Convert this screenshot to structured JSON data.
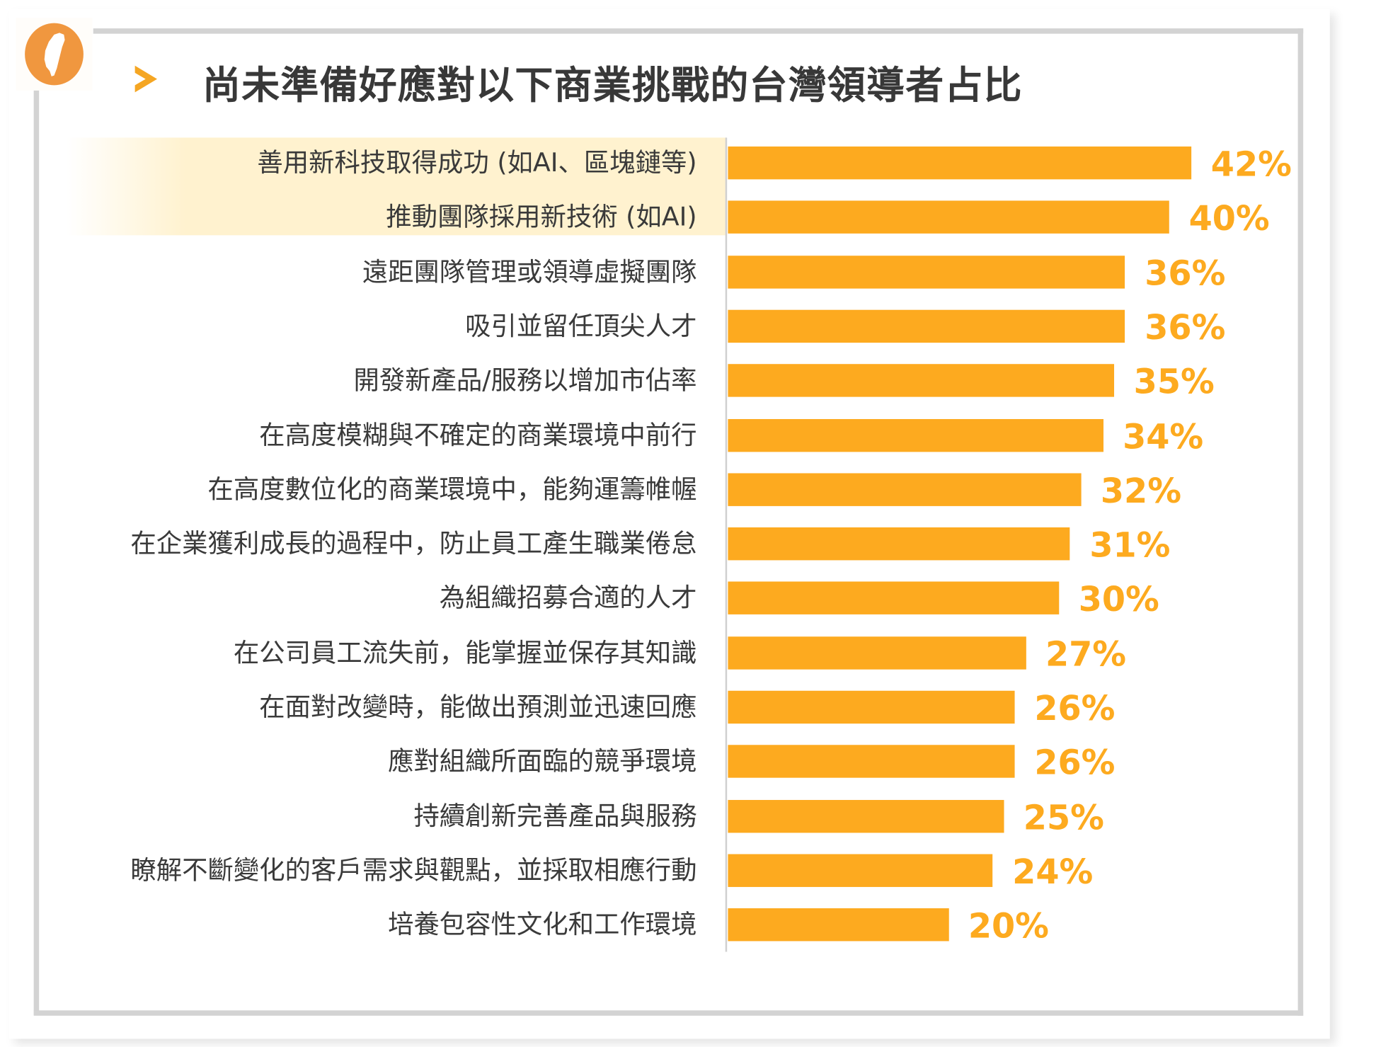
{
  "chart_data": {
    "type": "bar",
    "orientation": "horizontal",
    "title": "尚未準備好應對以下商業挑戰的台灣領導者占比",
    "categories": [
      "善用新科技取得成功 (如AI、區塊鏈等)",
      "推動團隊採用新技術 (如AI)",
      "遠距團隊管理或領導虛擬團隊",
      "吸引並留任頂尖人才",
      "開發新產品/服務以增加市佔率",
      "在高度模糊與不確定的商業環境中前行",
      "在高度數位化的商業環境中，能夠運籌帷幄",
      "在企業獲利成長的過程中，防止員工產生職業倦怠",
      "為組織招募合適的人才",
      "在公司員工流失前，能掌握並保存其知識",
      "在面對改變時，能做出預測並迅速回應",
      "應對組織所面臨的競爭環境",
      "持續創新完善產品與服務",
      "瞭解不斷變化的客戶需求與觀點，並採取相應行動",
      "培養包容性文化和工作環境"
    ],
    "values": [
      42,
      40,
      36,
      36,
      35,
      34,
      32,
      31,
      30,
      27,
      26,
      26,
      25,
      24,
      20
    ],
    "value_labels": [
      "42%",
      "40%",
      "36%",
      "36%",
      "35%",
      "34%",
      "32%",
      "31%",
      "30%",
      "27%",
      "26%",
      "26%",
      "25%",
      "24%",
      "20%"
    ],
    "highlighted_categories": [
      0,
      1
    ],
    "xlim": [
      0,
      100
    ],
    "grid": false,
    "legend": "none",
    "xlabel": "",
    "ylabel": ""
  },
  "colors": {
    "bar": "#fdaa1f",
    "value_label": "#fdaa1f",
    "logo": "#f0973f",
    "arrow": "#f5a623",
    "highlight": "#fff2cf",
    "frame": "#d3d3d3"
  },
  "icons": {
    "logo": "taiwan-map-icon",
    "title_marker": "chevron-right-icon"
  }
}
